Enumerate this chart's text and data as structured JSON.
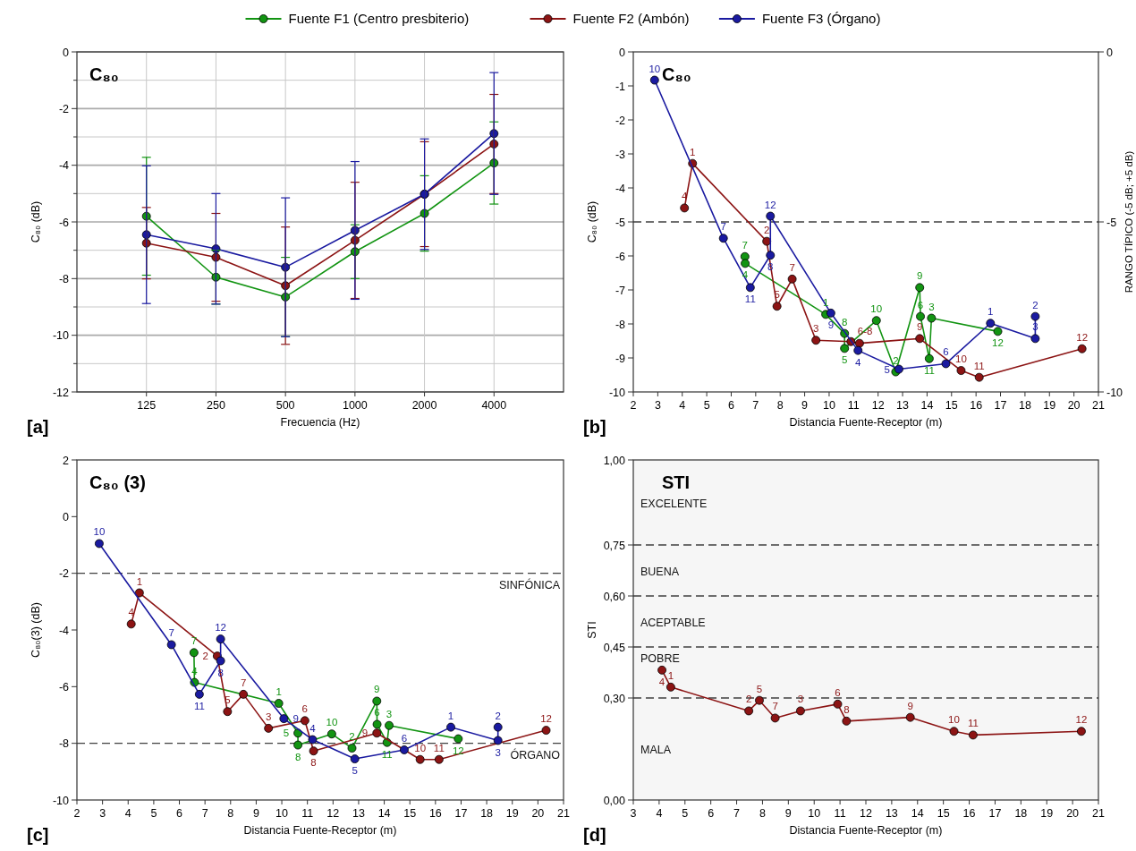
{
  "chart_data": [
    {
      "type": "line",
      "title": "C₈₀",
      "xlabel": "Frecuencia (Hz)",
      "ylabel": "C₈₀ (dB)",
      "categories": [
        "125",
        "250",
        "500",
        "1000",
        "2000",
        "4000"
      ],
      "ylim": [
        -12,
        0
      ],
      "yticks": [
        -12,
        {
          "value": -11,
          "label": null
        },
        -10,
        {
          "value": -9,
          "label": null
        },
        -8,
        {
          "value": -7,
          "label": null
        },
        -6,
        {
          "value": -5,
          "label": null
        },
        -4,
        {
          "value": -3,
          "label": null
        },
        -2,
        {
          "value": -1,
          "label": null
        },
        0
      ],
      "grid": true,
      "legend": "top",
      "marker": "circle",
      "annotations": [
        "[a]"
      ],
      "series": [
        {
          "name": "Fuente F1 (Centro presbiterio)",
          "color": "#129412",
          "values": [
            -5.8,
            -7.95,
            -8.65,
            -7.05,
            -5.7,
            -3.92
          ],
          "errors": [
            2.08,
            0.95,
            1.4,
            0.95,
            1.33,
            1.45
          ]
        },
        {
          "name": "Fuente F2 (Ambón)",
          "color": "#8c1414",
          "values": [
            -6.75,
            -7.25,
            -8.25,
            -6.65,
            -5.02,
            -3.25
          ],
          "errors": [
            1.26,
            1.55,
            2.07,
            2.05,
            1.85,
            1.75
          ]
        },
        {
          "name": "Fuente F3 (Órgano)",
          "color": "#1a1aa0",
          "values": [
            -6.45,
            -6.95,
            -7.6,
            -6.3,
            -5.02,
            -2.88
          ],
          "errors": [
            2.43,
            1.95,
            2.45,
            2.43,
            1.95,
            2.15
          ]
        }
      ]
    },
    {
      "type": "line",
      "title": "C₈₀",
      "xlabel": "Distancia Fuente-Receptor (m)",
      "ylabel": "C₈₀ (dB)",
      "y2label": "RANGO TÍPICO (-5 dB; +5 dB)",
      "xlim": [
        2,
        21
      ],
      "xticks": [
        2,
        3,
        4,
        5,
        6,
        7,
        8,
        9,
        10,
        11,
        12,
        13,
        14,
        15,
        16,
        17,
        18,
        19,
        20,
        21
      ],
      "ylim": [
        -10,
        0
      ],
      "yticks": [
        -10,
        -9,
        -8,
        -7,
        -6,
        -5,
        -4,
        -3,
        -2,
        -1,
        0
      ],
      "y2lim": [
        -10,
        0
      ],
      "y2ticks": [
        -10,
        -5,
        0
      ],
      "marker": "circle",
      "ref_lines": [
        {
          "axis": "y",
          "value": -5,
          "line_style": "dashed",
          "color": "#404040"
        }
      ],
      "series": [
        {
          "color": "#129412",
          "x": [
            6.56,
            6.57,
            9.86,
            10.63,
            10.63,
            11.93,
            12.72,
            13.7,
            13.73,
            14.09,
            14.18,
            16.89
          ],
          "values": [
            -6.02,
            -6.22,
            -7.72,
            -8.28,
            -8.72,
            -7.9,
            -9.41,
            -6.93,
            -7.78,
            -9.02,
            -7.83,
            -8.22
          ]
        },
        {
          "color": "#8c1414",
          "x": [
            4.09,
            4.42,
            7.45,
            7.87,
            8.49,
            9.46,
            10.89,
            11.24,
            13.7,
            15.39,
            16.13,
            20.33
          ],
          "values": [
            -4.59,
            -3.28,
            -5.57,
            -7.48,
            -6.68,
            -8.48,
            -8.52,
            -8.57,
            -8.43,
            -9.37,
            -9.57,
            -8.73
          ]
        },
        {
          "color": "#1a1aa0",
          "x": [
            2.87,
            5.68,
            6.78,
            7.6,
            7.6,
            10.07,
            11.18,
            12.85,
            14.77,
            16.59,
            18.42,
            18.42
          ],
          "values": [
            -0.83,
            -5.48,
            -6.93,
            -5.98,
            -4.83,
            -7.68,
            -8.78,
            -9.33,
            -9.17,
            -7.98,
            -8.43,
            -7.78
          ]
        }
      ],
      "annotations": [
        "[b]",
        {
          "text": "7",
          "x": 6.56,
          "y": -6.02
        },
        {
          "text": "4",
          "x": 6.57,
          "y": -6.22
        },
        {
          "text": "1",
          "x": 9.86,
          "y": -7.72
        },
        {
          "text": "8",
          "x": 10.63,
          "y": -8.28
        },
        {
          "text": "5",
          "x": 10.63,
          "y": -8.72
        },
        {
          "text": "10",
          "x": 11.93,
          "y": -7.9
        },
        {
          "text": "2",
          "x": 12.72,
          "y": -9.41
        },
        {
          "text": "9",
          "x": 13.7,
          "y": -6.93
        },
        {
          "text": "6",
          "x": 13.73,
          "y": -7.78
        },
        {
          "text": "11",
          "x": 14.09,
          "y": -9.02
        },
        {
          "text": "3",
          "x": 14.18,
          "y": -7.83
        },
        {
          "text": "12",
          "x": 16.89,
          "y": -8.22
        },
        {
          "text": "4",
          "x": 4.09,
          "y": -4.59
        },
        {
          "text": "1",
          "x": 4.42,
          "y": -3.28
        },
        {
          "text": "2",
          "x": 7.45,
          "y": -5.57
        },
        {
          "text": "5",
          "x": 7.87,
          "y": -7.48
        },
        {
          "text": "7",
          "x": 8.49,
          "y": -6.68
        },
        {
          "text": "3",
          "x": 9.46,
          "y": -8.48
        },
        {
          "text": "6-8",
          "x": 10.89,
          "y": -8.52
        },
        {
          "text": "9",
          "x": 13.7,
          "y": -8.43
        },
        {
          "text": "10",
          "x": 15.39,
          "y": -9.37
        },
        {
          "text": "11",
          "x": 16.13,
          "y": -9.57
        },
        {
          "text": "12",
          "x": 20.33,
          "y": -8.73
        },
        {
          "text": "10",
          "x": 2.87,
          "y": -0.83
        },
        {
          "text": "7",
          "x": 5.68,
          "y": -5.48
        },
        {
          "text": "11",
          "x": 6.78,
          "y": -6.93
        },
        {
          "text": "8",
          "x": 7.6,
          "y": -5.98
        },
        {
          "text": "12",
          "x": 7.6,
          "y": -4.83
        },
        {
          "text": "9",
          "x": 10.07,
          "y": -7.68
        },
        {
          "text": "4",
          "x": 11.18,
          "y": -8.78
        },
        {
          "text": "5",
          "x": 12.85,
          "y": -9.33
        },
        {
          "text": "6",
          "x": 14.77,
          "y": -9.17
        },
        {
          "text": "1",
          "x": 16.59,
          "y": -7.98
        },
        {
          "text": "3",
          "x": 18.42,
          "y": -8.43
        },
        {
          "text": "2",
          "x": 18.42,
          "y": -7.78
        }
      ]
    },
    {
      "type": "line",
      "title": "C₈₀ (3)",
      "xlabel": "Distancia Fuente-Receptor (m)",
      "ylabel": "C₈₀(3) (dB)",
      "xlim": [
        2,
        21
      ],
      "xticks": [
        2,
        3,
        4,
        5,
        6,
        7,
        8,
        9,
        10,
        11,
        12,
        13,
        14,
        15,
        16,
        17,
        18,
        19,
        20,
        21
      ],
      "ylim": [
        -10,
        2
      ],
      "yticks": [
        -10,
        -8,
        -6,
        -4,
        -2,
        0,
        2
      ],
      "marker": "circle",
      "ref_lines": [
        {
          "axis": "y",
          "value": -2,
          "label": "SINFÓNICA",
          "line_style": "dashed",
          "color": "#404040"
        },
        {
          "axis": "y",
          "value": -8,
          "label": "ÓRGANO",
          "line_style": "dashed",
          "color": "#404040"
        }
      ],
      "series": [
        {
          "color": "#129412",
          "x": [
            6.57,
            6.59,
            9.88,
            10.63,
            10.63,
            11.95,
            12.74,
            13.71,
            13.72,
            14.11,
            14.19,
            16.89
          ],
          "values": [
            -4.8,
            -5.85,
            -6.59,
            -7.64,
            -8.06,
            -7.67,
            -8.17,
            -6.51,
            -7.33,
            -7.97,
            -7.37,
            -7.84
          ]
        },
        {
          "color": "#8c1414",
          "x": [
            4.12,
            4.44,
            7.48,
            7.88,
            8.5,
            9.48,
            10.9,
            11.24,
            13.71,
            15.4,
            16.14,
            20.32
          ],
          "values": [
            -3.79,
            -2.69,
            -4.92,
            -6.88,
            -6.27,
            -7.47,
            -7.2,
            -8.27,
            -7.64,
            -8.57,
            -8.57,
            -7.54
          ]
        },
        {
          "color": "#1a1aa0",
          "x": [
            2.87,
            5.69,
            6.78,
            7.61,
            7.61,
            10.08,
            11.2,
            12.85,
            14.78,
            16.6,
            18.44,
            18.44
          ],
          "values": [
            -0.95,
            -4.52,
            -6.27,
            -5.09,
            -4.32,
            -7.13,
            -7.87,
            -8.55,
            -8.23,
            -7.43,
            -7.9,
            -7.43
          ]
        }
      ],
      "annotations": [
        "[c]",
        {
          "text": "7",
          "x": 6.57,
          "y": -4.8
        },
        {
          "text": "4",
          "x": 6.59,
          "y": -5.85
        },
        {
          "text": "1",
          "x": 9.88,
          "y": -6.59
        },
        {
          "text": "5",
          "x": 10.63,
          "y": -7.64
        },
        {
          "text": "8",
          "x": 10.63,
          "y": -8.06
        },
        {
          "text": "10",
          "x": 11.95,
          "y": -7.67
        },
        {
          "text": "2",
          "x": 12.74,
          "y": -8.17
        },
        {
          "text": "9",
          "x": 13.71,
          "y": -6.51
        },
        {
          "text": "6",
          "x": 13.72,
          "y": -7.33
        },
        {
          "text": "11",
          "x": 14.11,
          "y": -7.97
        },
        {
          "text": "3",
          "x": 14.19,
          "y": -7.37
        },
        {
          "text": "12",
          "x": 16.89,
          "y": -7.84
        },
        {
          "text": "4",
          "x": 4.12,
          "y": -3.79
        },
        {
          "text": "1",
          "x": 4.44,
          "y": -2.69
        },
        {
          "text": "2",
          "x": 7.48,
          "y": -4.92
        },
        {
          "text": "5",
          "x": 7.88,
          "y": -6.88
        },
        {
          "text": "7",
          "x": 8.5,
          "y": -6.27
        },
        {
          "text": "3",
          "x": 9.48,
          "y": -7.47
        },
        {
          "text": "6",
          "x": 10.9,
          "y": -7.2
        },
        {
          "text": "8",
          "x": 11.24,
          "y": -8.27
        },
        {
          "text": "9",
          "x": 13.71,
          "y": -7.64
        },
        {
          "text": "10",
          "x": 15.4,
          "y": -8.57
        },
        {
          "text": "11",
          "x": 16.14,
          "y": -8.57
        },
        {
          "text": "12",
          "x": 20.32,
          "y": -7.54
        },
        {
          "text": "10",
          "x": 2.87,
          "y": -0.95
        },
        {
          "text": "7",
          "x": 5.69,
          "y": -4.52
        },
        {
          "text": "11",
          "x": 6.78,
          "y": -6.27
        },
        {
          "text": "8",
          "x": 7.61,
          "y": -5.09
        },
        {
          "text": "12",
          "x": 7.61,
          "y": -4.32
        },
        {
          "text": "9",
          "x": 10.08,
          "y": -7.13
        },
        {
          "text": "4",
          "x": 11.2,
          "y": -7.87
        },
        {
          "text": "5",
          "x": 12.85,
          "y": -8.55
        },
        {
          "text": "6",
          "x": 14.78,
          "y": -8.23
        },
        {
          "text": "1",
          "x": 16.6,
          "y": -7.43
        },
        {
          "text": "3",
          "x": 18.44,
          "y": -7.9
        },
        {
          "text": "2",
          "x": 18.44,
          "y": -7.43
        }
      ]
    },
    {
      "type": "line",
      "title": "STI",
      "xlabel": "Distancia Fuente-Receptor (m)",
      "ylabel": "STI",
      "xlim": [
        3,
        21
      ],
      "xticks": [
        3,
        4,
        5,
        6,
        7,
        8,
        9,
        10,
        11,
        12,
        13,
        14,
        15,
        16,
        17,
        18,
        19,
        20,
        21
      ],
      "ylim": [
        0,
        1
      ],
      "yticks": [
        {
          "value": 0,
          "label": "0,00"
        },
        {
          "value": 0.3,
          "label": "0,30"
        },
        {
          "value": 0.45,
          "label": "0,45"
        },
        {
          "value": 0.6,
          "label": "0,60"
        },
        {
          "value": 0.75,
          "label": "0,75"
        },
        {
          "value": 1,
          "label": "1,00"
        }
      ],
      "marker": "circle",
      "ref_lines": [
        {
          "axis": "y",
          "value": 0.3,
          "line_style": "dashed",
          "color": "#404040"
        },
        {
          "axis": "y",
          "value": 0.45,
          "line_style": "dashed",
          "color": "#404040"
        },
        {
          "axis": "y",
          "value": 0.6,
          "line_style": "dashed",
          "color": "#404040"
        },
        {
          "axis": "y",
          "value": 0.75,
          "line_style": "dashed",
          "color": "#404040"
        }
      ],
      "bands": [
        {
          "axis": "y",
          "from": 0.75,
          "to": 1,
          "label": "EXCELENTE",
          "color": "#f6f6f6"
        },
        {
          "axis": "y",
          "from": 0.6,
          "to": 0.75,
          "label": "BUENA",
          "color": "#f6f6f6"
        },
        {
          "axis": "y",
          "from": 0.45,
          "to": 0.6,
          "label": "ACEPTABLE",
          "color": "#f6f6f6"
        },
        {
          "axis": "y",
          "from": 0.3,
          "to": 0.45,
          "label": "POBRE",
          "color": "#f6f6f6"
        },
        {
          "axis": "y",
          "from": 0,
          "to": 0.3,
          "label": "MALA",
          "color": "#f6f6f6"
        }
      ],
      "series": [
        {
          "color": "#8c1414",
          "x": [
            4.11,
            4.45,
            7.47,
            7.88,
            8.49,
            9.47,
            10.91,
            11.25,
            13.72,
            15.41,
            16.15,
            20.34
          ],
          "values": [
            0.382,
            0.332,
            0.262,
            0.293,
            0.241,
            0.262,
            0.282,
            0.232,
            0.243,
            0.202,
            0.191,
            0.202
          ]
        }
      ],
      "annotations": [
        "[d]",
        {
          "text": "4",
          "x": 4.11,
          "y": 0.382
        },
        {
          "text": "1",
          "x": 4.45,
          "y": 0.332
        },
        {
          "text": "2",
          "x": 7.47,
          "y": 0.262
        },
        {
          "text": "5",
          "x": 7.88,
          "y": 0.293
        },
        {
          "text": "7",
          "x": 8.49,
          "y": 0.241
        },
        {
          "text": "3",
          "x": 9.47,
          "y": 0.262
        },
        {
          "text": "6",
          "x": 10.91,
          "y": 0.282
        },
        {
          "text": "8",
          "x": 11.25,
          "y": 0.232
        },
        {
          "text": "9",
          "x": 13.72,
          "y": 0.243
        },
        {
          "text": "10",
          "x": 15.41,
          "y": 0.202
        },
        {
          "text": "11",
          "x": 16.15,
          "y": 0.191
        },
        {
          "text": "12",
          "x": 20.34,
          "y": 0.202
        }
      ]
    }
  ]
}
